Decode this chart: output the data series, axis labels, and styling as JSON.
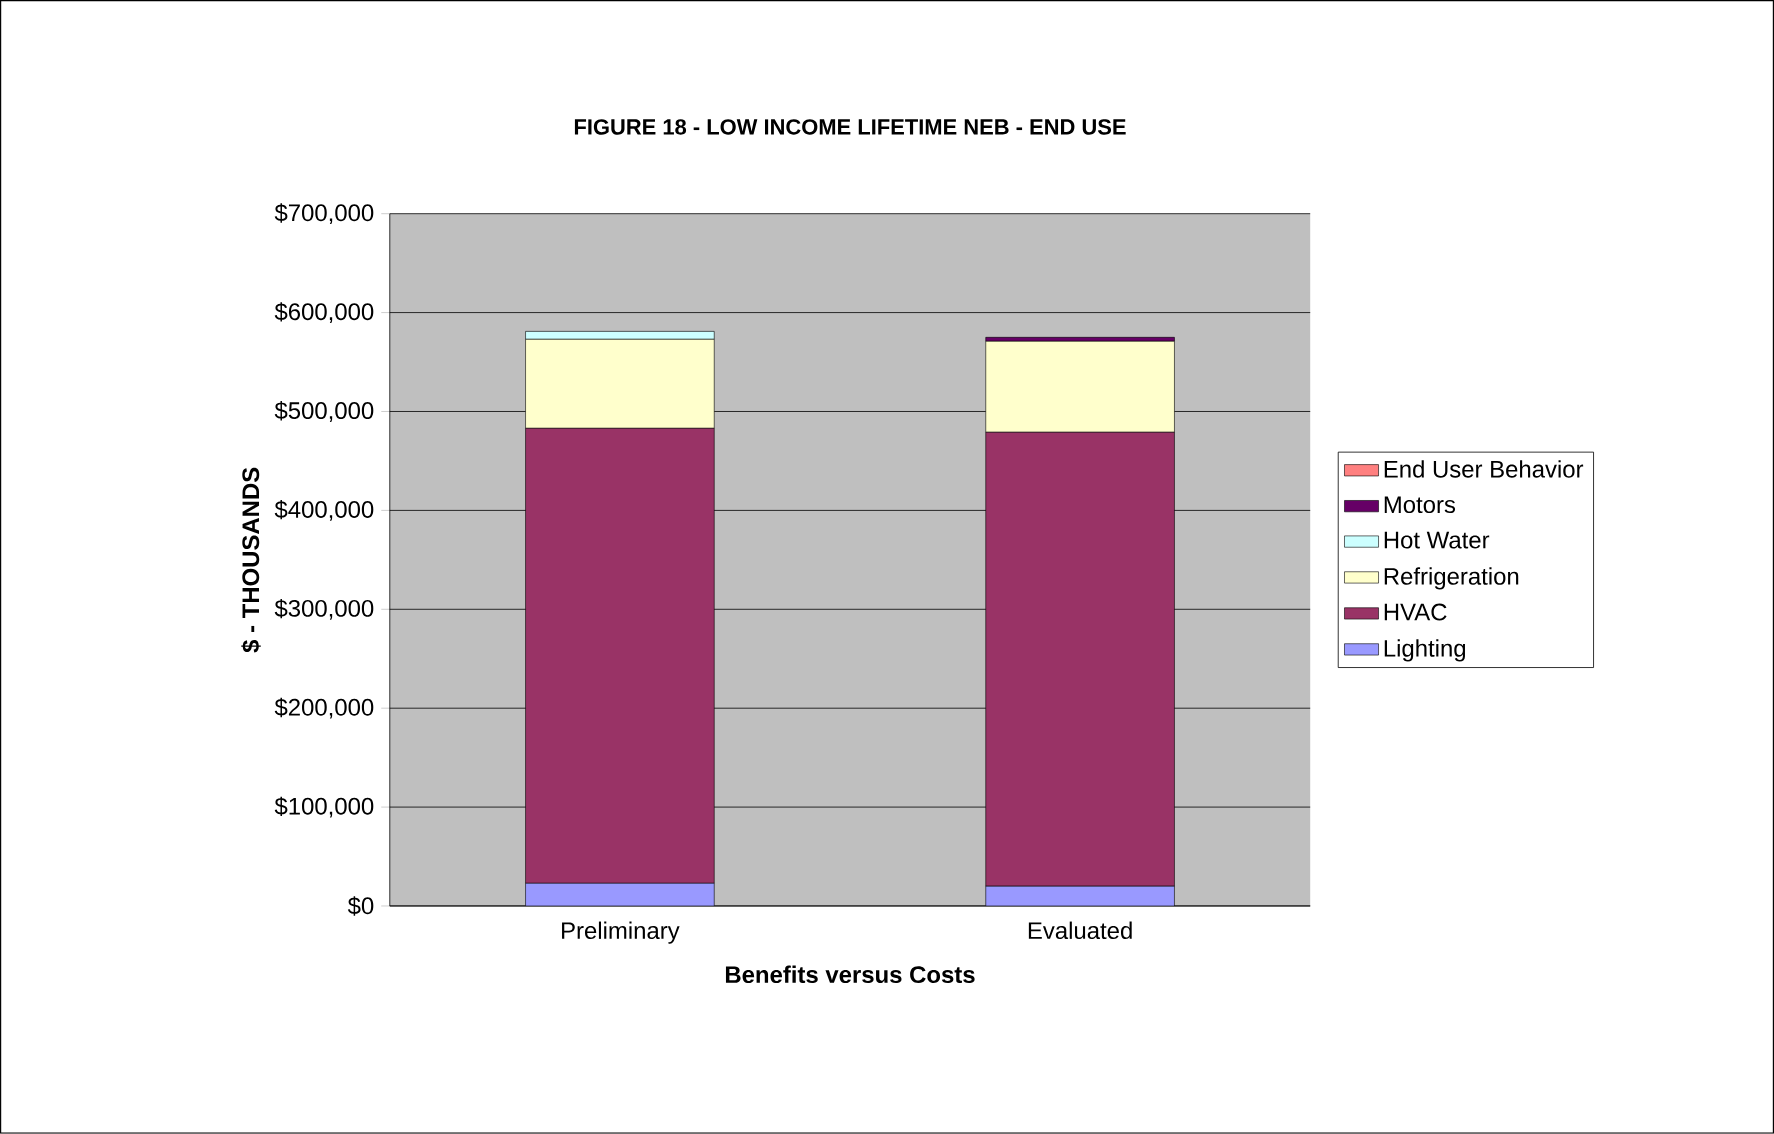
{
  "chart_data": {
    "type": "bar",
    "stacked": true,
    "title": "FIGURE 18 - LOW INCOME LIFETIME NEB - END USE",
    "xlabel": "Benefits versus Costs",
    "ylabel": "$ - THOUSANDS",
    "categories": [
      "Preliminary",
      "Evaluated"
    ],
    "series": [
      {
        "name": "Lighting",
        "color": "#9999ff",
        "values": [
          23000,
          20000
        ]
      },
      {
        "name": "HVAC",
        "color": "#993366",
        "values": [
          460000,
          459000
        ]
      },
      {
        "name": "Refrigeration",
        "color": "#ffffcc",
        "values": [
          90000,
          92000
        ]
      },
      {
        "name": "Hot Water",
        "color": "#ccffff",
        "values": [
          8000,
          null
        ]
      },
      {
        "name": "Motors",
        "color": "#660066",
        "values": [
          null,
          4000
        ]
      },
      {
        "name": "End User Behavior",
        "color": "#ff8080",
        "values": [
          0,
          0
        ]
      }
    ],
    "ylim": [
      0,
      700000
    ],
    "yticks": [
      {
        "value": 0,
        "label": "$0"
      },
      {
        "value": 100000,
        "label": "$100,000"
      },
      {
        "value": 200000,
        "label": "$200,000"
      },
      {
        "value": 300000,
        "label": "$300,000"
      },
      {
        "value": 400000,
        "label": "$400,000"
      },
      {
        "value": 500000,
        "label": "$500,000"
      },
      {
        "value": 600000,
        "label": "$600,000"
      },
      {
        "value": 700000,
        "label": "$700,000"
      }
    ],
    "grid": "y",
    "legend": "right"
  }
}
